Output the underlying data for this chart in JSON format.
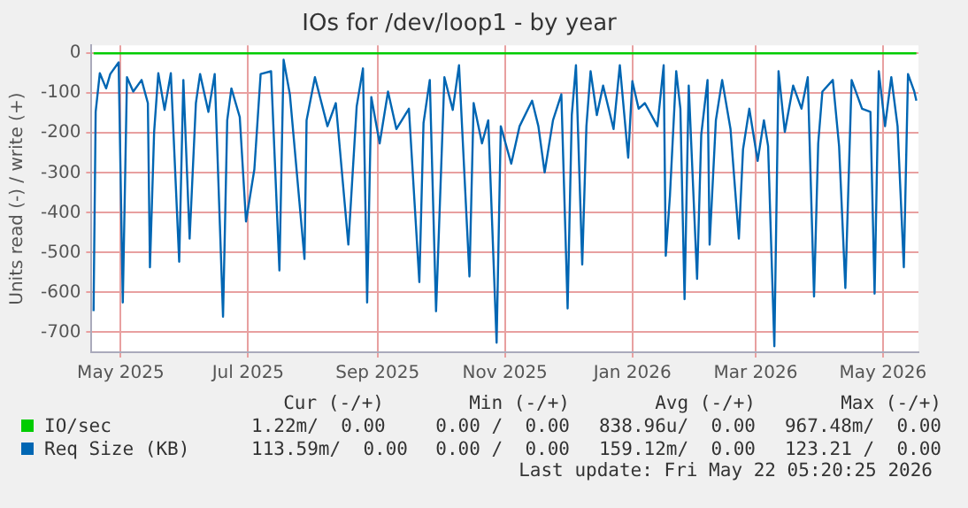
{
  "chart_data": {
    "type": "line",
    "title": "IOs for /dev/loop1 - by year",
    "ylabel": "Units read (-) / write (+)",
    "xlim": [
      "2025-04-17",
      "2026-05-18"
    ],
    "xticks": [
      {
        "value": "2025-05-01",
        "label": "May 2025"
      },
      {
        "value": "2025-07-01",
        "label": "Jul 2025"
      },
      {
        "value": "2025-09-01",
        "label": "Sep 2025"
      },
      {
        "value": "2025-11-01",
        "label": "Nov 2025"
      },
      {
        "value": "2026-01-01",
        "label": "Jan 2026"
      },
      {
        "value": "2026-03-01",
        "label": "Mar 2026"
      },
      {
        "value": "2026-05-01",
        "label": "May 2026"
      }
    ],
    "ylim": [
      -750,
      20
    ],
    "yticks": [
      0,
      -100,
      -200,
      -300,
      -400,
      -500,
      -600,
      -700
    ],
    "grid": true,
    "legend": "bottom",
    "marker": "none",
    "series": [
      {
        "name": "Req Size (KB)",
        "color": "#0066b3",
        "x": [
          "2025-04-18",
          "2025-04-19",
          "2025-04-21",
          "2025-04-24",
          "2025-04-26",
          "2025-04-30",
          "2025-05-02",
          "2025-05-04",
          "2025-05-07",
          "2025-05-11",
          "2025-05-14",
          "2025-05-15",
          "2025-05-17",
          "2025-05-19",
          "2025-05-22",
          "2025-05-25",
          "2025-05-29",
          "2025-05-31",
          "2025-06-03",
          "2025-06-06",
          "2025-06-08",
          "2025-06-12",
          "2025-06-15",
          "2025-06-19",
          "2025-06-21",
          "2025-06-23",
          "2025-06-27",
          "2025-06-30",
          "2025-07-04",
          "2025-07-07",
          "2025-07-12",
          "2025-07-16",
          "2025-07-18",
          "2025-07-21",
          "2025-07-28",
          "2025-07-29",
          "2025-08-02",
          "2025-08-08",
          "2025-08-12",
          "2025-08-18",
          "2025-08-22",
          "2025-08-25",
          "2025-08-27",
          "2025-08-29",
          "2025-09-02",
          "2025-09-06",
          "2025-09-10",
          "2025-09-16",
          "2025-09-21",
          "2025-09-23",
          "2025-09-26",
          "2025-09-29",
          "2025-10-03",
          "2025-10-07",
          "2025-10-10",
          "2025-10-15",
          "2025-10-17",
          "2025-10-21",
          "2025-10-24",
          "2025-10-28",
          "2025-10-30",
          "2025-11-04",
          "2025-11-08",
          "2025-11-14",
          "2025-11-17",
          "2025-11-20",
          "2025-11-24",
          "2025-11-28",
          "2025-12-01",
          "2025-12-03",
          "2025-12-05",
          "2025-12-08",
          "2025-12-10",
          "2025-12-12",
          "2025-12-15",
          "2025-12-18",
          "2025-12-23",
          "2025-12-26",
          "2025-12-30",
          "2026-01-01",
          "2026-01-04",
          "2026-01-07",
          "2026-01-13",
          "2026-01-16",
          "2026-01-17",
          "2026-01-19",
          "2026-01-22",
          "2026-01-24",
          "2026-01-26",
          "2026-01-28",
          "2026-02-01",
          "2026-02-03",
          "2026-02-06",
          "2026-02-07",
          "2026-02-10",
          "2026-02-13",
          "2026-02-17",
          "2026-02-21",
          "2026-02-23",
          "2026-02-26",
          "2026-03-02",
          "2026-03-05",
          "2026-03-07",
          "2026-03-10",
          "2026-03-12",
          "2026-03-15",
          "2026-03-19",
          "2026-03-23",
          "2026-03-26",
          "2026-03-29",
          "2026-03-31",
          "2026-04-02",
          "2026-04-07",
          "2026-04-10",
          "2026-04-13",
          "2026-04-16",
          "2026-04-21",
          "2026-04-25",
          "2026-04-27",
          "2026-04-29",
          "2026-05-02",
          "2026-05-05",
          "2026-05-08",
          "2026-05-11",
          "2026-05-13",
          "2026-05-16",
          "2026-05-17"
        ],
        "values": [
          -647,
          -147,
          -50,
          -88,
          -52,
          -23,
          -625,
          -60,
          -96,
          -67,
          -125,
          -537,
          -197,
          -50,
          -142,
          -50,
          -523,
          -67,
          -465,
          -125,
          -52,
          -147,
          -52,
          -661,
          -168,
          -88,
          -160,
          -422,
          -291,
          -52,
          -45,
          -545,
          -16,
          -103,
          -516,
          -168,
          -60,
          -183,
          -125,
          -480,
          -133,
          -38,
          -625,
          -110,
          -226,
          -96,
          -190,
          -139,
          -574,
          -175,
          -67,
          -647,
          -60,
          -142,
          -30,
          -560,
          -125,
          -226,
          -168,
          -726,
          -183,
          -277,
          -183,
          -119,
          -183,
          -299,
          -168,
          -103,
          -640,
          -155,
          -30,
          -530,
          -183,
          -45,
          -155,
          -81,
          -190,
          -30,
          -262,
          -70,
          -139,
          -125,
          -183,
          -30,
          -508,
          -357,
          -45,
          -139,
          -617,
          -81,
          -566,
          -204,
          -67,
          -480,
          -168,
          -67,
          -190,
          -465,
          -241,
          -139,
          -270,
          -168,
          -233,
          -735,
          -45,
          -197,
          -81,
          -139,
          -60,
          -610,
          -226,
          -96,
          -67,
          -233,
          -589,
          -67,
          -139,
          -147,
          -603,
          -45,
          -183,
          -60,
          -183,
          -537,
          -52,
          -96,
          -119
        ]
      },
      {
        "name": "IO/sec",
        "color": "#00cc00",
        "x": [
          "2025-04-18",
          "2026-05-17"
        ],
        "values": [
          0,
          0
        ]
      }
    ],
    "annotations": [
      "Cur (-/+)",
      "Min (-/+)",
      "Avg (-/+)",
      "Max (-/+)",
      "1.22m/  0.00",
      "0.00 /  0.00",
      "838.96u/  0.00",
      "967.48m/  0.00",
      "113.59m/  0.00",
      "0.00 /  0.00",
      "159.12m/  0.00",
      "123.21 /  0.00",
      "Last update: Fri May 22 05:20:25 2026"
    ]
  }
}
